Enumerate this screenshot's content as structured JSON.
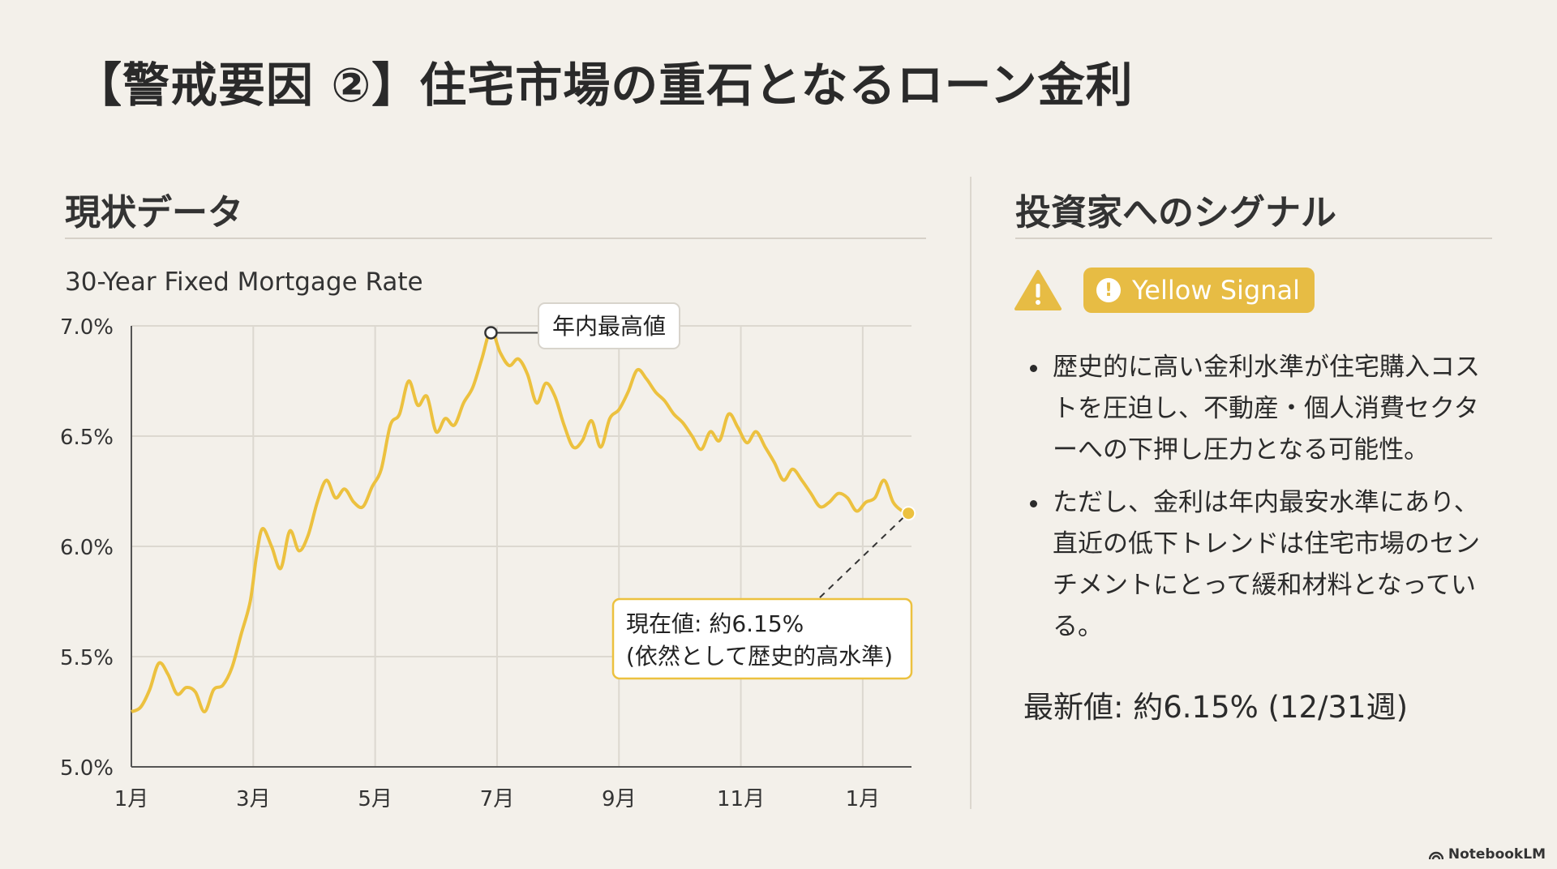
{
  "slide": {
    "title": "【警戒要因 ②】住宅市場の重石となるローン金利",
    "left_heading": "現状データ",
    "right_heading": "投資家へのシグナル",
    "signal_label": "Yellow Signal",
    "bullets": [
      "歴史的に高い金利水準が住宅購入コストを圧迫し、不動産・個人消費セクターへの下押し圧力となる可能性。",
      "ただし、金利は年内最安水準にあり、直近の低下トレンドは住宅市場のセンチメントにとって緩和材料となっている。"
    ],
    "latest_value": "最新値: 約6.15% (12/31週)",
    "brand": "NotebookLM"
  },
  "colors": {
    "line": "#ecc13f",
    "badge": "#e7bc44",
    "grid": "#dcd8d0",
    "background": "#f3f0ea"
  },
  "chart_data": {
    "type": "line",
    "title": "30-Year Fixed Mortgage Rate",
    "ylim": [
      5.0,
      7.0
    ],
    "yticks": [
      5.0,
      5.5,
      6.0,
      6.5,
      7.0
    ],
    "ytick_labels": [
      "5.0%",
      "5.5%",
      "6.0%",
      "6.5%",
      "7.0%"
    ],
    "xlim": [
      0,
      12.8
    ],
    "xticks": [
      0,
      2,
      4,
      6,
      8,
      10,
      12
    ],
    "xtick_labels": [
      "1月",
      "3月",
      "5月",
      "7月",
      "9月",
      "11月",
      "1月"
    ],
    "grid": true,
    "series": [
      {
        "x": [
          0.0,
          0.15,
          0.3,
          0.45,
          0.6,
          0.75,
          0.9,
          1.05,
          1.2,
          1.35,
          1.5,
          1.65,
          1.8,
          1.95,
          2.05,
          2.15,
          2.3,
          2.45,
          2.6,
          2.75,
          2.9,
          3.05,
          3.2,
          3.35,
          3.5,
          3.65,
          3.8,
          3.95,
          4.1,
          4.25,
          4.4,
          4.55,
          4.7,
          4.85,
          5.0,
          5.15,
          5.3,
          5.45,
          5.6,
          5.75,
          5.9,
          6.05,
          6.2,
          6.35,
          6.5,
          6.65,
          6.8,
          6.95,
          7.1,
          7.25,
          7.4,
          7.55,
          7.7,
          7.85,
          8.0,
          8.15,
          8.3,
          8.45,
          8.6,
          8.75,
          8.9,
          9.05,
          9.2,
          9.35,
          9.5,
          9.65,
          9.8,
          9.95,
          10.1,
          10.25,
          10.4,
          10.55,
          10.7,
          10.85,
          11.0,
          11.15,
          11.3,
          11.45,
          11.6,
          11.75,
          11.9,
          12.05,
          12.2,
          12.35,
          12.5,
          12.65,
          12.75
        ],
        "y": [
          5.25,
          5.27,
          5.35,
          5.47,
          5.42,
          5.33,
          5.36,
          5.34,
          5.25,
          5.35,
          5.37,
          5.45,
          5.6,
          5.75,
          5.95,
          6.08,
          6.0,
          5.9,
          6.07,
          5.98,
          6.05,
          6.2,
          6.3,
          6.22,
          6.26,
          6.2,
          6.18,
          6.27,
          6.35,
          6.55,
          6.6,
          6.75,
          6.64,
          6.68,
          6.52,
          6.58,
          6.55,
          6.65,
          6.72,
          6.85,
          6.98,
          6.88,
          6.82,
          6.85,
          6.78,
          6.65,
          6.74,
          6.68,
          6.55,
          6.45,
          6.48,
          6.57,
          6.45,
          6.58,
          6.62,
          6.7,
          6.8,
          6.76,
          6.7,
          6.66,
          6.6,
          6.56,
          6.5,
          6.44,
          6.52,
          6.48,
          6.6,
          6.54,
          6.47,
          6.52,
          6.45,
          6.38,
          6.3,
          6.35,
          6.3,
          6.24,
          6.18,
          6.2,
          6.24,
          6.22,
          6.16,
          6.2,
          6.22,
          6.3,
          6.2,
          6.16,
          6.15
        ]
      }
    ],
    "annotations": [
      {
        "label": "年内最高値",
        "x": 5.9,
        "y": 6.98
      },
      {
        "label": "現在値: 約6.15%\n(依然として歴史的高水準)",
        "x": 12.75,
        "y": 6.15
      }
    ]
  }
}
